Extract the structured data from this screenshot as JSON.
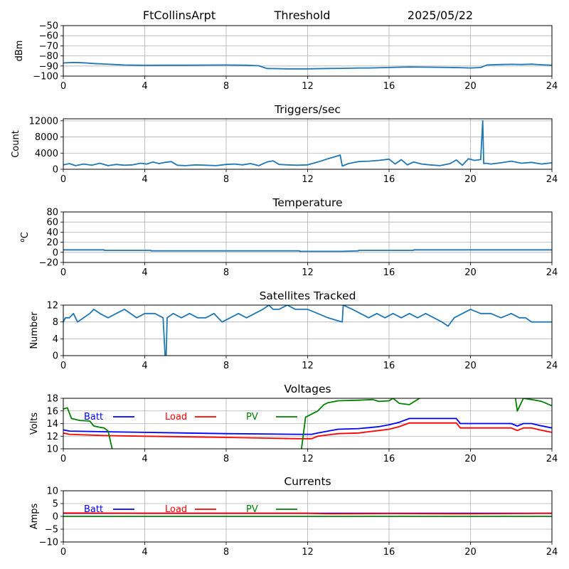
{
  "header": {
    "station": "FtCollinsArpt",
    "panel": "Threshold",
    "date": "2025/05/22"
  },
  "legend_labels": {
    "batt": "Batt",
    "load": "Load",
    "pv": "PV"
  },
  "colors": {
    "series": "#1f77b4",
    "batt": "#0000ff",
    "load": "#ff0000",
    "pv": "#008000",
    "grid": "#b0b0b0"
  },
  "chart_data": [
    {
      "type": "line",
      "title": "",
      "xlabel": "",
      "ylabel": "dBm",
      "xlim": [
        0,
        24
      ],
      "ylim": [
        -100,
        -50
      ],
      "xticks": [
        0,
        4,
        8,
        12,
        16,
        20,
        24
      ],
      "yticks": [
        -100,
        -90,
        -80,
        -70,
        -60,
        -50
      ],
      "ytick_labels": [
        "−100",
        "−90",
        "−80",
        "−70",
        "−60",
        "−50"
      ],
      "grid": true,
      "series": [
        {
          "x": [
            0,
            0.5,
            1.0,
            1.5,
            2.0,
            2.5,
            3.0,
            4.0,
            5.0,
            6.0,
            7.0,
            8.0,
            9.0,
            9.6,
            10.0,
            11.0,
            12.0,
            13.0,
            13.7,
            14.5,
            15.0,
            16.0,
            17.0,
            18.0,
            19.0,
            19.5,
            20.0,
            20.5,
            20.8,
            21.5,
            22.0,
            22.5,
            23.0,
            23.5,
            24.0
          ],
          "y": [
            -87,
            -86.5,
            -86.8,
            -87.5,
            -88,
            -88.5,
            -89,
            -89.3,
            -89.2,
            -89.2,
            -89.1,
            -89.0,
            -89.2,
            -89.8,
            -92.5,
            -92.8,
            -92.8,
            -92.5,
            -92.3,
            -92,
            -92,
            -91.5,
            -91,
            -91.2,
            -91.5,
            -91.6,
            -92,
            -91.5,
            -89,
            -88.5,
            -88.3,
            -88.5,
            -88.2,
            -88.8,
            -89.2
          ]
        }
      ]
    },
    {
      "type": "line",
      "title": "Triggers/sec",
      "xlabel": "",
      "ylabel": "Count",
      "xlim": [
        0,
        24
      ],
      "ylim": [
        0,
        12500
      ],
      "xticks": [
        0,
        4,
        8,
        12,
        16,
        20,
        24
      ],
      "yticks": [
        0,
        4000,
        8000,
        12000
      ],
      "ytick_labels": [
        "0",
        "4000",
        "8000",
        "12000"
      ],
      "grid": true,
      "series": [
        {
          "x": [
            0,
            0.3,
            0.6,
            1.0,
            1.4,
            1.8,
            2.2,
            2.6,
            3.0,
            3.4,
            3.8,
            4.1,
            4.4,
            4.7,
            5.0,
            5.3,
            5.6,
            6.0,
            6.5,
            7.0,
            7.5,
            8.0,
            8.4,
            8.8,
            9.2,
            9.6,
            10.0,
            10.3,
            10.6,
            11.0,
            11.5,
            12.0,
            12.5,
            13.0,
            13.6,
            13.7,
            14.0,
            14.5,
            15.0,
            15.5,
            16.0,
            16.3,
            16.6,
            16.9,
            17.2,
            17.6,
            18.0,
            18.5,
            19.0,
            19.3,
            19.6,
            19.9,
            20.2,
            20.5,
            20.6,
            20.65,
            20.75,
            21.0,
            21.5,
            22.0,
            22.5,
            23.0,
            23.5,
            24.0
          ],
          "y": [
            1100,
            1400,
            900,
            1300,
            1000,
            1500,
            900,
            1200,
            1000,
            1100,
            1500,
            1300,
            1800,
            1400,
            1700,
            1900,
            1000,
            900,
            1100,
            1000,
            900,
            1200,
            1300,
            1100,
            1400,
            900,
            1800,
            2100,
            1200,
            1100,
            1000,
            1100,
            1800,
            2600,
            3500,
            800,
            1400,
            1900,
            2000,
            2200,
            2500,
            1300,
            2400,
            1100,
            1800,
            1300,
            1100,
            900,
            1400,
            2300,
            1000,
            2600,
            2200,
            2400,
            12000,
            1400,
            1500,
            1300,
            1600,
            2000,
            1500,
            1700,
            1300,
            1600
          ]
        }
      ]
    },
    {
      "type": "line",
      "title": "Temperature",
      "xlabel": "",
      "ylabel": "oC",
      "xlim": [
        0,
        24
      ],
      "ylim": [
        -20,
        80
      ],
      "xticks": [
        0,
        4,
        8,
        12,
        16,
        20,
        24
      ],
      "yticks": [
        -20,
        0,
        20,
        40,
        60,
        80
      ],
      "ytick_labels": [
        "−20",
        "0",
        "20",
        "40",
        "60",
        "80"
      ],
      "grid": true,
      "series": [
        {
          "x": [
            0,
            2,
            2.01,
            4.3,
            4.31,
            8,
            11.6,
            11.61,
            12.2,
            13.7,
            14.5,
            14.51,
            17.2,
            17.21,
            20,
            24
          ],
          "y": [
            5,
            5,
            4,
            4,
            3,
            3,
            3,
            2,
            2,
            2,
            3,
            4,
            4,
            5,
            5,
            5
          ]
        }
      ]
    },
    {
      "type": "line",
      "title": "Satellites Tracked",
      "xlabel": "",
      "ylabel": "Number",
      "xlim": [
        0,
        24
      ],
      "ylim": [
        0,
        12
      ],
      "xticks": [
        0,
        4,
        8,
        12,
        16,
        20,
        24
      ],
      "yticks": [
        0,
        4,
        8,
        12
      ],
      "ytick_labels": [
        "0",
        "4",
        "8",
        "12"
      ],
      "grid": true,
      "series": [
        {
          "x": [
            0,
            0.1,
            0.3,
            0.5,
            0.7,
            1.0,
            1.3,
            1.5,
            1.8,
            2.2,
            2.6,
            3.0,
            3.3,
            3.6,
            4.0,
            4.5,
            4.9,
            5.0,
            5.05,
            5.1,
            5.4,
            5.8,
            6.2,
            6.6,
            7.0,
            7.4,
            7.8,
            8.2,
            8.6,
            9.0,
            9.4,
            9.8,
            10.1,
            10.3,
            10.6,
            11.0,
            11.4,
            12.0,
            12.5,
            13.0,
            13.7,
            13.75,
            14.2,
            14.6,
            15.0,
            15.4,
            15.8,
            16.2,
            16.6,
            17.0,
            17.4,
            17.8,
            18.2,
            18.6,
            18.9,
            19.2,
            19.6,
            20.0,
            20.5,
            21.0,
            21.5,
            22.0,
            22.4,
            22.7,
            23.0,
            24.0
          ],
          "y": [
            8,
            9,
            9,
            10,
            8,
            9,
            10,
            11,
            10,
            9,
            10,
            11,
            10,
            9,
            10,
            10,
            9,
            0,
            0,
            9,
            10,
            9,
            10,
            9,
            9,
            10,
            8,
            9,
            10,
            9,
            10,
            11,
            12,
            11,
            11,
            12,
            11,
            11,
            10,
            9,
            8,
            12,
            11,
            10,
            9,
            10,
            9,
            10,
            9,
            10,
            9,
            10,
            9,
            8,
            7,
            9,
            10,
            11,
            10,
            10,
            9,
            10,
            9,
            9,
            8,
            8
          ]
        }
      ]
    },
    {
      "type": "line",
      "title": "Voltages",
      "xlabel": "",
      "ylabel": "Volts",
      "xlim": [
        0,
        24
      ],
      "ylim": [
        10,
        18
      ],
      "xticks": [
        0,
        4,
        8,
        12,
        16,
        20,
        24
      ],
      "yticks": [
        10,
        12,
        14,
        16,
        18
      ],
      "ytick_labels": [
        "10",
        "12",
        "14",
        "16",
        "18"
      ],
      "grid": true,
      "legend": "inside-upper-left",
      "series": [
        {
          "name": "Batt",
          "x": [
            0,
            0.3,
            2,
            4,
            8,
            11.5,
            12.2,
            12.5,
            13,
            13.5,
            14.5,
            15,
            15.5,
            16,
            16.5,
            17,
            19.3,
            19.5,
            20,
            21,
            22,
            22.3,
            22.6,
            23,
            23.4,
            24
          ],
          "y": [
            13,
            12.8,
            12.7,
            12.6,
            12.4,
            12.3,
            12.3,
            12.5,
            12.8,
            13.1,
            13.2,
            13.35,
            13.5,
            13.8,
            14.2,
            14.8,
            14.8,
            14,
            14,
            14,
            14,
            13.6,
            14,
            14,
            13.7,
            13.3
          ]
        },
        {
          "name": "Load",
          "x": [
            0,
            0.3,
            2,
            4,
            8,
            11.5,
            12.2,
            12.5,
            13,
            13.5,
            14.5,
            15,
            15.5,
            16,
            16.5,
            17,
            19.3,
            19.5,
            20,
            21,
            22,
            22.3,
            22.6,
            23,
            23.4,
            24
          ],
          "y": [
            12.5,
            12.3,
            12.1,
            12,
            11.8,
            11.6,
            11.6,
            12,
            12.2,
            12.4,
            12.5,
            12.7,
            12.9,
            13.1,
            13.5,
            14.1,
            14.1,
            13.3,
            13.3,
            13.3,
            13.3,
            12.9,
            13.3,
            13.3,
            13.0,
            12.6
          ]
        },
        {
          "name": "PV",
          "x": [
            0,
            0.2,
            0.4,
            0.8,
            1.3,
            1.5,
            1.8,
            2.0,
            2.2,
            2.4,
            2.6,
            11.4,
            11.7,
            11.9,
            12.5,
            12.8,
            13.0,
            13.5,
            14.5,
            15.2,
            15.5,
            16.0,
            16.2,
            16.5,
            17.0,
            17.5,
            18.0,
            22.2,
            22.3,
            22.6,
            23.0,
            23.5,
            24.0
          ],
          "y": [
            16.3,
            16.5,
            14.8,
            14.5,
            14.4,
            13.6,
            13.4,
            13.3,
            12.8,
            10.0,
            6.0,
            6.0,
            10.0,
            15.0,
            16.0,
            17.0,
            17.3,
            17.6,
            17.7,
            17.8,
            17.5,
            17.6,
            18.0,
            17.2,
            17.0,
            18.0,
            18.5,
            18.2,
            16.0,
            18.0,
            17.8,
            17.5,
            16.8
          ]
        }
      ]
    },
    {
      "type": "line",
      "title": "Currents",
      "xlabel": "",
      "ylabel": "Amps",
      "xlim": [
        0,
        24
      ],
      "ylim": [
        -10,
        10
      ],
      "xticks": [
        0,
        4,
        8,
        12,
        16,
        20,
        24
      ],
      "yticks": [
        -10,
        -5,
        0,
        5,
        10
      ],
      "ytick_labels": [
        "−10",
        "−5",
        "0",
        "5",
        "10"
      ],
      "grid": true,
      "legend": "inside-upper-left",
      "series": [
        {
          "name": "Batt",
          "x": [
            0,
            24
          ],
          "y": [
            1.2,
            1.2
          ]
        },
        {
          "name": "Load",
          "x": [
            0,
            1,
            4,
            8,
            12,
            13,
            16,
            20,
            24
          ],
          "y": [
            1.3,
            1.3,
            1.2,
            1.2,
            1.2,
            1.0,
            1.1,
            1.0,
            1.2
          ]
        },
        {
          "name": "PV",
          "x": [
            0,
            24
          ],
          "y": [
            0,
            0
          ]
        }
      ]
    }
  ]
}
